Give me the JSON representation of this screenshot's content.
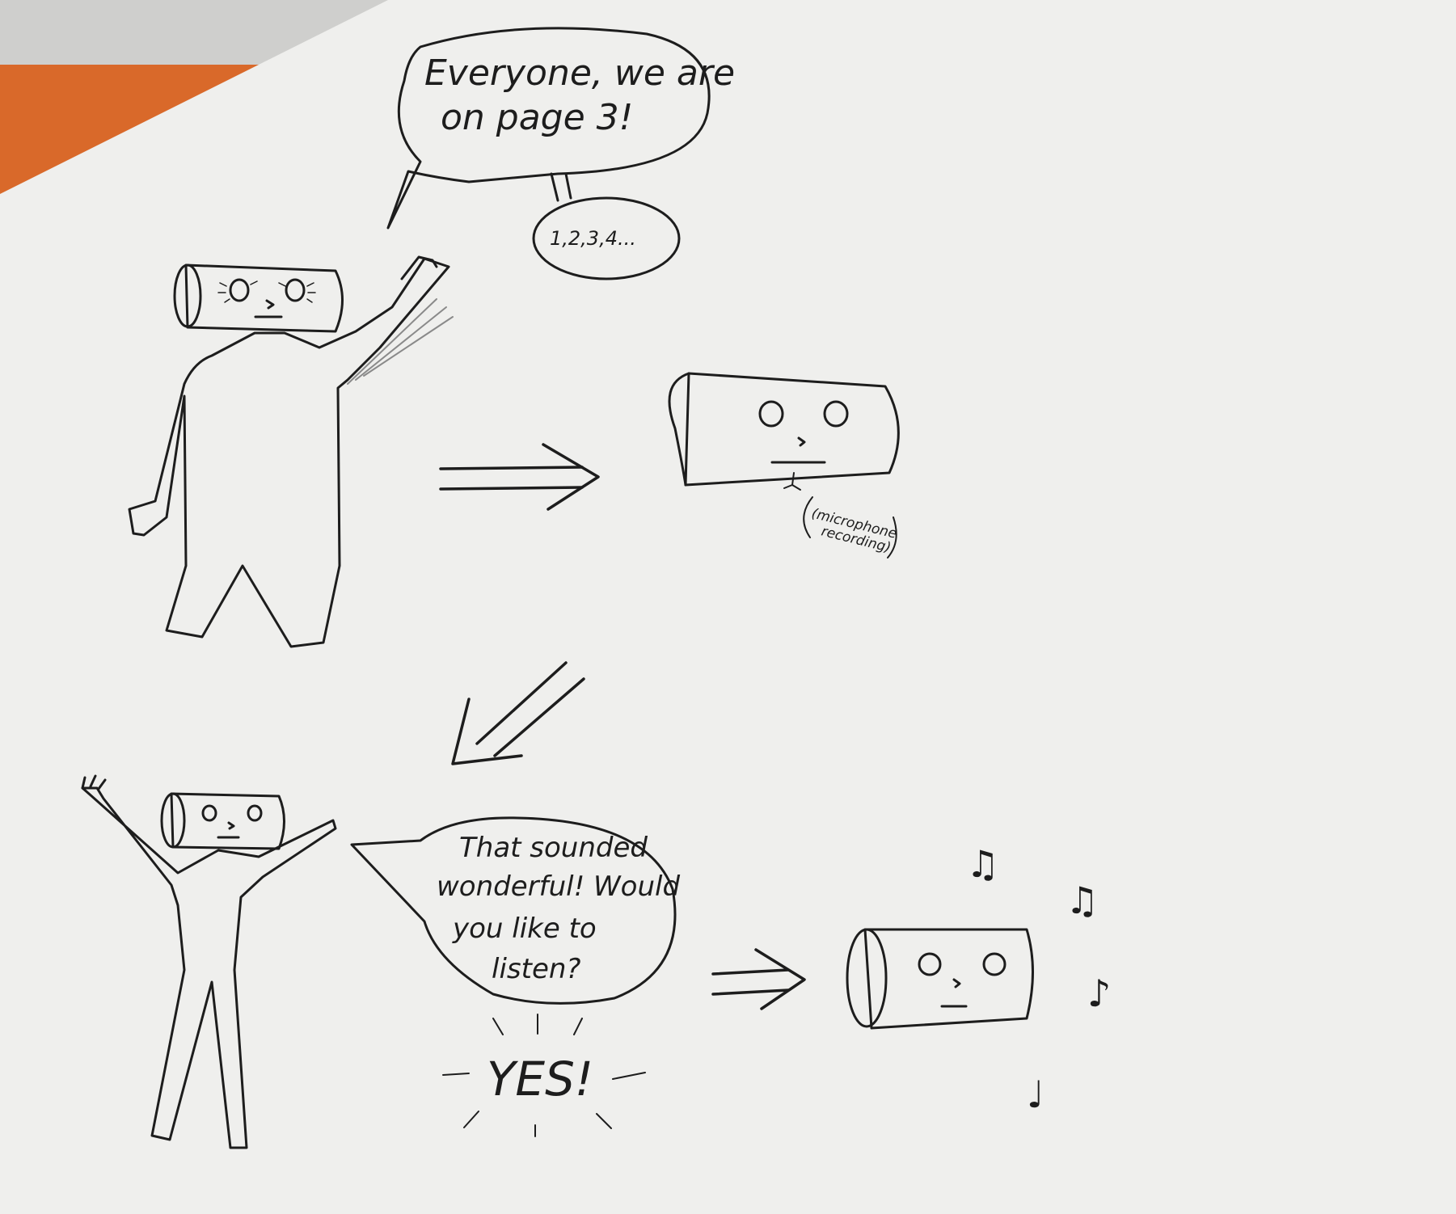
{
  "colors": {
    "paper": "#efefed",
    "ink": "#1d1d1d",
    "orange": "#d9692a"
  },
  "speech": {
    "bubble_1": [
      "Everyone, we are",
      "on page 3!"
    ],
    "bubble_2": "1,2,3,4...",
    "recording_note": [
      "(microphone",
      "recording)"
    ],
    "bubble_3": [
      "That sounded",
      "wonderful! Would",
      "you like to",
      "listen?"
    ],
    "exclamation": "YES!"
  },
  "music_notes": [
    "♫",
    "♫",
    "♪",
    "♩"
  ]
}
